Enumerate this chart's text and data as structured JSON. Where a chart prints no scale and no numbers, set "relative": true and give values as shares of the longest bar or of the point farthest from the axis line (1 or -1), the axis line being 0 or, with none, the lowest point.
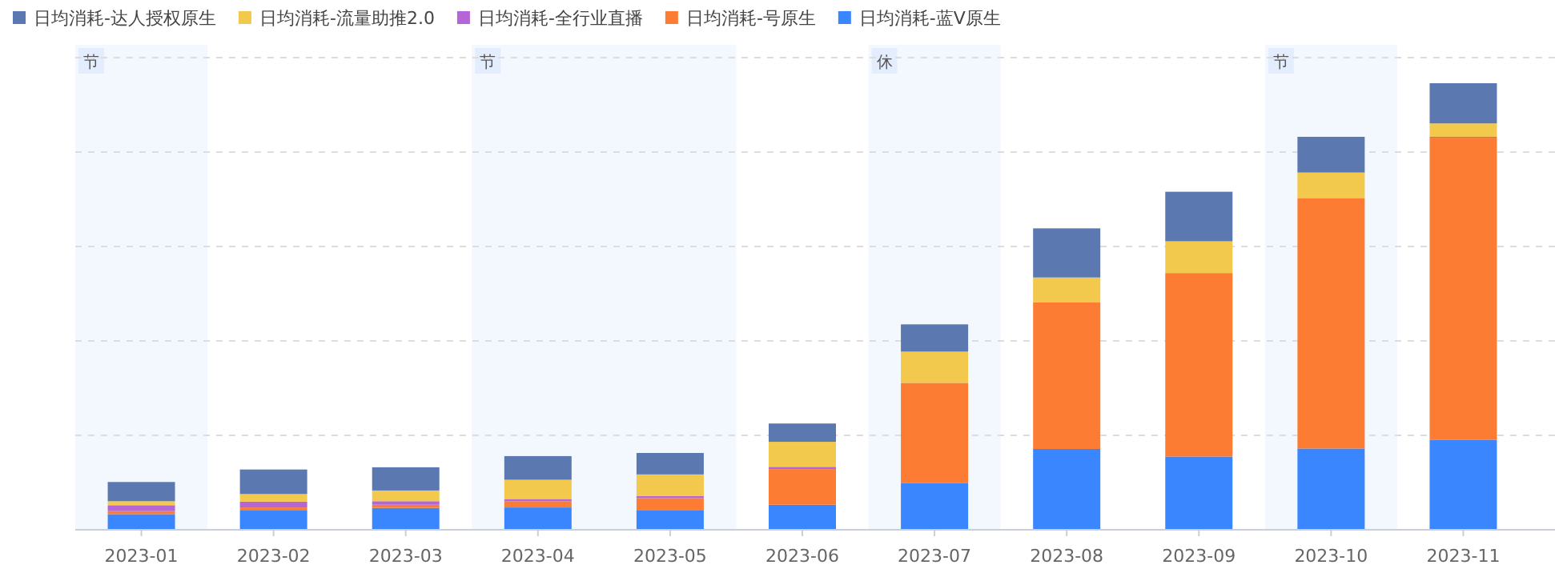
{
  "chart_data": {
    "type": "bar",
    "stacked": true,
    "relative": true,
    "grid": "y",
    "legend": "top left",
    "categories": [
      "2023-01",
      "2023-02",
      "2023-03",
      "2023-04",
      "2023-05",
      "2023-06",
      "2023-07",
      "2023-08",
      "2023-09",
      "2023-10",
      "2023-11"
    ],
    "series": [
      {
        "name": "日均消耗-蓝V原生",
        "color": "#3a86ff",
        "values": [
          0.035,
          0.043,
          0.049,
          0.05,
          0.043,
          0.056,
          0.105,
          0.181,
          0.164,
          0.182,
          0.201
        ]
      },
      {
        "name": "日均消耗-号原生",
        "color": "#fd7c34",
        "values": [
          0.007,
          0.007,
          0.007,
          0.014,
          0.028,
          0.08,
          0.224,
          0.328,
          0.411,
          0.561,
          0.677
        ]
      },
      {
        "name": "日均消耗-全行业直播",
        "color": "#b565d6",
        "values": [
          0.013,
          0.013,
          0.008,
          0.005,
          0.005,
          0.005,
          null,
          null,
          null,
          null,
          0.002
        ]
      },
      {
        "name": "日均消耗-流量助推2.0",
        "color": "#f2c94c",
        "values": [
          0.009,
          0.017,
          0.024,
          0.043,
          0.048,
          0.056,
          0.07,
          0.056,
          0.071,
          0.057,
          0.03
        ]
      },
      {
        "name": "日均消耗-达人授权原生",
        "color": "#5b78b0",
        "values": [
          0.043,
          0.055,
          0.052,
          0.053,
          0.048,
          0.041,
          0.061,
          0.11,
          0.111,
          0.08,
          0.09
        ]
      }
    ],
    "bands": [
      {
        "axis": "x",
        "from": "2023-01",
        "to": "2023-01",
        "label": "节",
        "color": "#f3f7fe"
      },
      {
        "axis": "x",
        "from": "2023-04",
        "to": "2023-05",
        "label": "节",
        "color": "#f3f7fe"
      },
      {
        "axis": "x",
        "from": "2023-07",
        "to": "2023-07",
        "label": "休",
        "color": "#f3f7fe"
      },
      {
        "axis": "x",
        "from": "2023-10",
        "to": "2023-10",
        "label": "节",
        "color": "#f3f7fe"
      }
    ]
  }
}
